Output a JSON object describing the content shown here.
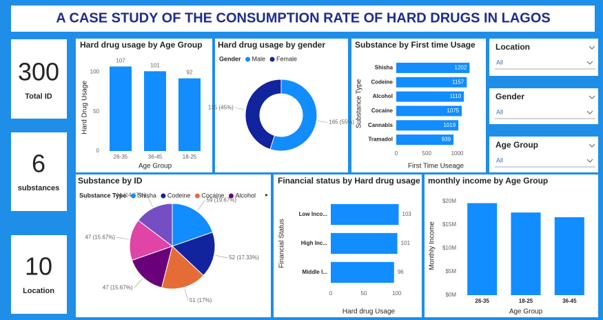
{
  "title": "A CASE STUDY OF THE CONSUMPTION RATE OF HARD DRUGS IN LAGOS",
  "cards": [
    {
      "value": 300,
      "label": "Total ID"
    },
    {
      "value": 6,
      "label": "substances"
    },
    {
      "value": 10,
      "label": "Location"
    }
  ],
  "slicers": [
    {
      "label": "Location",
      "value": "All"
    },
    {
      "label": "Gender",
      "value": "All"
    },
    {
      "label": "Age Group",
      "value": "All"
    }
  ],
  "chart_data": [
    {
      "type": "bar",
      "title": "Hard drug usage by Age Group",
      "categories": [
        "26-35",
        "36-45",
        "18-25"
      ],
      "values": [
        107,
        101,
        92
      ],
      "color": "#118dff",
      "ylim": [
        0,
        110
      ],
      "yticks": [
        0,
        50,
        100
      ],
      "xlabel": "Age Group",
      "ylabel": "Hard Drug Usage",
      "data_labels": true
    },
    {
      "type": "donut",
      "title": "Hard drug usage by gender",
      "legend_title": "Gender",
      "categories": [
        "Male",
        "Female"
      ],
      "values": [
        165,
        135
      ],
      "value_labels": [
        "165 (55%)",
        "135 (45%)"
      ],
      "colors": [
        "#118dff",
        "#12239e"
      ]
    },
    {
      "type": "barh",
      "title": "Substance by First time Usage",
      "categories": [
        "Shisha",
        "Codeine",
        "Alcohol",
        "Cocaine",
        "Cannabis",
        "Tramadol"
      ],
      "values": [
        1202,
        1157,
        1110,
        1075,
        1019,
        939
      ],
      "color": "#118dff",
      "xlim": [
        0,
        1300
      ],
      "xticks": [
        0,
        500,
        1000
      ],
      "xlabel": "First Time Useage",
      "ylabel": "Substance Type",
      "data_labels": "inside"
    },
    {
      "type": "pie",
      "title": "Substance by ID",
      "legend_title": "Substance Type",
      "categories": [
        "Shisha",
        "Codeine",
        "Cocaine",
        "Alcohol",
        null,
        null
      ],
      "values": [
        59,
        52,
        51,
        47,
        47,
        44
      ],
      "value_labels": [
        "59 (19.67%)",
        "52 (17.33%)",
        "51 (17%)",
        "47 (15.67%)",
        "47 (15.67%)",
        "44 (14.67%)"
      ],
      "colors": [
        "#118dff",
        "#12239e",
        "#e66c37",
        "#6b007b",
        "#e044a7",
        "#744ec2"
      ]
    },
    {
      "type": "barh",
      "title": "Financial status by Hard drug usage",
      "categories": [
        "Low Inco...",
        "High Inc...",
        "Middle I..."
      ],
      "values": [
        103,
        101,
        96
      ],
      "color": "#118dff",
      "xlim": [
        0,
        115
      ],
      "xticks": [
        0,
        50,
        100
      ],
      "xlabel": "Hard drug Usage",
      "ylabel": "Financial Status",
      "data_labels": "outside"
    },
    {
      "type": "bar",
      "title": "monthly income by Age Group",
      "categories": [
        "26-35",
        "18-25",
        "36-45"
      ],
      "values": [
        19600000,
        17600000,
        16600000
      ],
      "color": "#118dff",
      "ylim": [
        0,
        21000000
      ],
      "yticks": [
        {
          "value": 0,
          "label": "$0M"
        },
        {
          "value": 5000000,
          "label": "$5M"
        },
        {
          "value": 10000000,
          "label": "$10M"
        },
        {
          "value": 15000000,
          "label": "$15M"
        },
        {
          "value": 20000000,
          "label": "$20M"
        }
      ],
      "xlabel": "Age Group",
      "ylabel": "Monthly Income",
      "data_labels": false
    }
  ]
}
